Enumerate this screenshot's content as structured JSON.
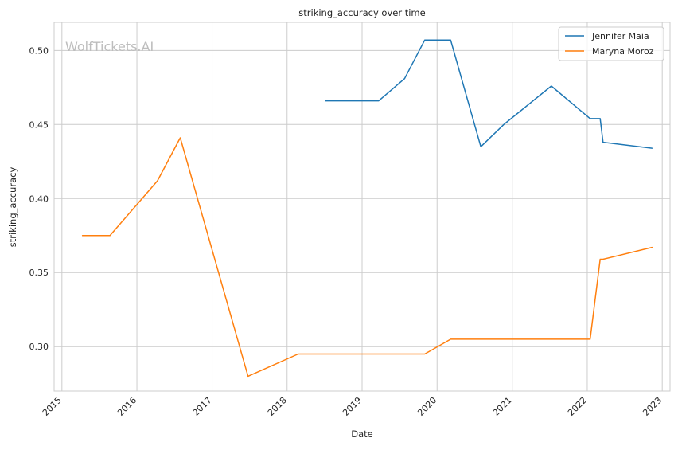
{
  "watermark": "WolfTickets.AI",
  "chart_data": {
    "type": "line",
    "title": "striking_accuracy over time",
    "xlabel": "Date",
    "ylabel": "striking_accuracy",
    "x_ticks": [
      "2015",
      "2016",
      "2017",
      "2018",
      "2019",
      "2020",
      "2021",
      "2022",
      "2023"
    ],
    "y_ticks": [
      "0.30",
      "0.35",
      "0.40",
      "0.45",
      "0.50"
    ],
    "xlim": [
      "2014-11-24",
      "2023-02-08"
    ],
    "ylim": [
      0.27,
      0.519
    ],
    "grid": true,
    "legend_position": "top-right",
    "series": [
      {
        "name": "Jennifer Maia",
        "color": "#1f77b4",
        "points": [
          [
            "2018-07-07",
            0.466
          ],
          [
            "2019-03-23",
            0.466
          ],
          [
            "2019-07-27",
            0.481
          ],
          [
            "2019-11-02",
            0.507
          ],
          [
            "2020-03-07",
            0.507
          ],
          [
            "2020-08-01",
            0.435
          ],
          [
            "2020-11-21",
            0.45
          ],
          [
            "2021-07-10",
            0.476
          ],
          [
            "2022-01-15",
            0.454
          ],
          [
            "2022-03-05",
            0.454
          ],
          [
            "2022-03-19",
            0.438
          ],
          [
            "2022-11-12",
            0.434
          ]
        ]
      },
      {
        "name": "Maryna Moroz",
        "color": "#ff7f0e",
        "points": [
          [
            "2015-04-11",
            0.375
          ],
          [
            "2015-08-23",
            0.375
          ],
          [
            "2016-04-10",
            0.412
          ],
          [
            "2016-07-30",
            0.441
          ],
          [
            "2017-06-25",
            0.28
          ],
          [
            "2018-02-24",
            0.295
          ],
          [
            "2019-03-23",
            0.295
          ],
          [
            "2019-11-02",
            0.295
          ],
          [
            "2020-03-07",
            0.305
          ],
          [
            "2022-01-15",
            0.305
          ],
          [
            "2022-03-05",
            0.359
          ],
          [
            "2022-03-19",
            0.359
          ],
          [
            "2022-11-12",
            0.367
          ]
        ]
      }
    ]
  }
}
